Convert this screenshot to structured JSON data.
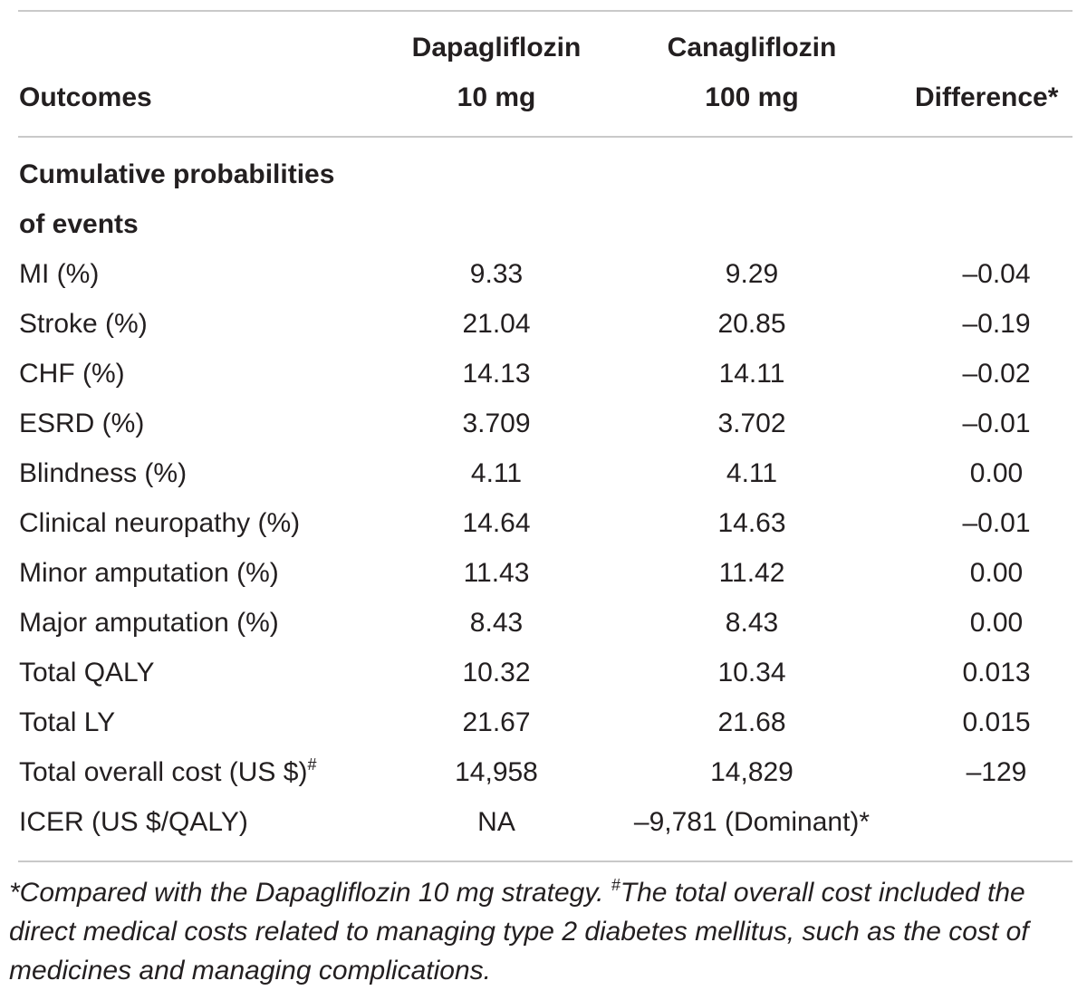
{
  "header": {
    "col1": "Outcomes",
    "col2_line1": "Dapagliflozin",
    "col2_line2": "10 mg",
    "col3_line1": "Canagliflozin",
    "col3_line2": "100 mg",
    "col4": "Difference*"
  },
  "section": {
    "line1": "Cumulative probabilities",
    "line2": "of events"
  },
  "rows": [
    {
      "label": "MI (%)",
      "dapa": "9.33",
      "cana": "9.29",
      "diff": "–0.04"
    },
    {
      "label": "Stroke (%)",
      "dapa": "21.04",
      "cana": "20.85",
      "diff": "–0.19"
    },
    {
      "label": "CHF (%)",
      "dapa": "14.13",
      "cana": "14.11",
      "diff": "–0.02"
    },
    {
      "label": "ESRD (%)",
      "dapa": "3.709",
      "cana": "3.702",
      "diff": "–0.01"
    },
    {
      "label": "Blindness (%)",
      "dapa": "4.11",
      "cana": "4.11",
      "diff": "0.00"
    },
    {
      "label": "Clinical neuropathy (%)",
      "dapa": "14.64",
      "cana": "14.63",
      "diff": "–0.01"
    },
    {
      "label": "Minor amputation (%)",
      "dapa": "11.43",
      "cana": "11.42",
      "diff": "0.00"
    },
    {
      "label": "Major amputation (%)",
      "dapa": "8.43",
      "cana": "8.43",
      "diff": "0.00"
    },
    {
      "label": "Total QALY",
      "dapa": "10.32",
      "cana": "10.34",
      "diff": "0.013"
    },
    {
      "label": "Total LY",
      "dapa": "21.67",
      "cana": "21.68",
      "diff": "0.015"
    },
    {
      "label": "Total overall cost (US $)",
      "label_sup": "#",
      "dapa": "14,958",
      "cana": "14,829",
      "diff": "–129"
    },
    {
      "label": "ICER (US $/QALY)",
      "dapa": "NA",
      "cana": "–9,781 (Dominant)*",
      "diff": ""
    }
  ],
  "footnote": {
    "part1": "*Compared with the Dapagliflozin 10 mg strategy. ",
    "sup": "#",
    "part2": "The total overall cost included the direct medical costs related to managing type 2 diabetes mellitus, such as the cost of medicines and managing complications."
  }
}
